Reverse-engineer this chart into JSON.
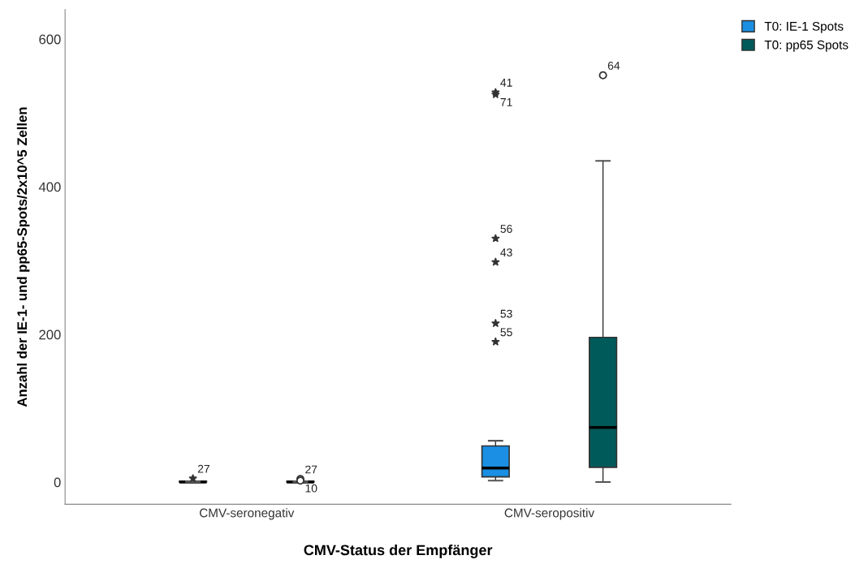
{
  "chart_data": {
    "type": "box",
    "xlabel": "CMV-Status der Empfänger",
    "ylabel": "Anzahl der IE-1- und pp65-Spots/2x10^5 Zellen",
    "categories": [
      "CMV-seronegativ",
      "CMV-seropositiv"
    ],
    "series": [
      {
        "name": "T0: IE-1 Spots",
        "color": "#1a8fe3",
        "marker": "star",
        "boxes": [
          {
            "low": 0,
            "q1": 0,
            "median": 0,
            "q3": 1,
            "high": 1,
            "outliers": [
              5
            ]
          },
          {
            "low": 2,
            "q1": 7,
            "median": 19,
            "q3": 49,
            "high": 56,
            "outliers": [
              528,
              525,
              330,
              298,
              215,
              190
            ]
          }
        ]
      },
      {
        "name": "T0: pp65 Spots",
        "color": "#005a5a",
        "marker": "circle",
        "boxes": [
          {
            "low": 0,
            "q1": 0,
            "median": 0,
            "q3": 1,
            "high": 1,
            "outliers": [
              4,
              2
            ]
          },
          {
            "low": 0,
            "q1": 20,
            "median": 74,
            "q3": 196,
            "high": 435,
            "outliers": [
              551
            ]
          }
        ]
      }
    ],
    "annotations": [
      "27",
      "41",
      "71",
      "56",
      "43",
      "53",
      "55",
      "27",
      "10",
      "64"
    ],
    "ylim": [
      -30,
      640
    ],
    "yticks": [
      0,
      200,
      400,
      600
    ],
    "grid": false,
    "legend": "top right"
  }
}
